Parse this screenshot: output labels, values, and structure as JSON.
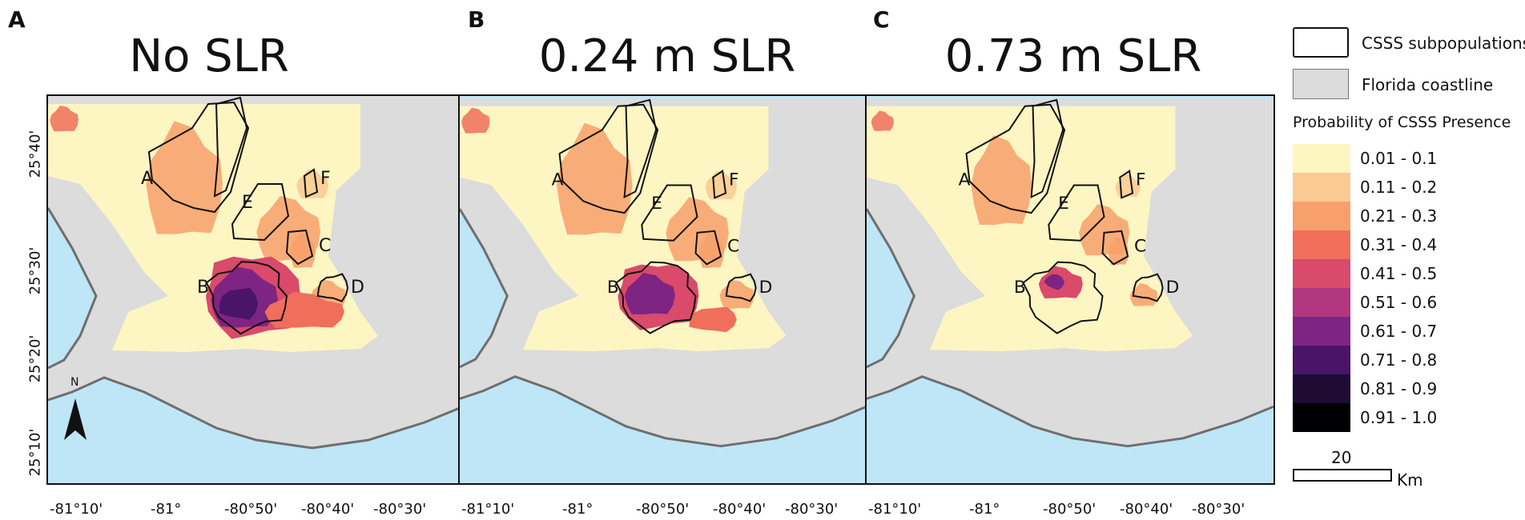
{
  "panels": [
    {
      "letter": "A",
      "title": "No SLR"
    },
    {
      "letter": "B",
      "title": "0.24 m SLR"
    },
    {
      "letter": "C",
      "title": "0.73 m SLR"
    }
  ],
  "y_ticks": [
    "25°40'",
    "25°30'",
    "25°20'",
    "25°10'"
  ],
  "x_ticks": [
    "-81°10'",
    "-81°",
    "-80°50'",
    "-80°40'",
    "-80°30'"
  ],
  "subpop_labels": [
    "A",
    "B",
    "C",
    "D",
    "E",
    "F"
  ],
  "north_label": "N",
  "legend": {
    "subpop_label": "CSSS subpopulations",
    "coast_label": "Florida coastline",
    "prob_title": "Probability of CSSS Presence",
    "classes": [
      {
        "label": "0.01 - 0.1",
        "color": "#fdf6c3"
      },
      {
        "label": "0.11 - 0.2",
        "color": "#fbc992"
      },
      {
        "label": "0.21 - 0.3",
        "color": "#f7a06b"
      },
      {
        "label": "0.31 - 0.4",
        "color": "#ef6f5b"
      },
      {
        "label": "0.41 - 0.5",
        "color": "#d94a6b"
      },
      {
        "label": "0.51 - 0.6",
        "color": "#b1367e"
      },
      {
        "label": "0.61 - 0.7",
        "color": "#7e2482"
      },
      {
        "label": "0.71 - 0.8",
        "color": "#4a1468"
      },
      {
        "label": "0.81 - 0.9",
        "color": "#1e0c35"
      },
      {
        "label": "0.91 - 1.0",
        "color": "#000004"
      }
    ],
    "scale_value": "20",
    "scale_unit": "Km"
  },
  "colors": {
    "water": "#bfe6f6",
    "land": "#dcdcdc",
    "coast_line": "#6e6e6e",
    "subpop_outline": "#111111"
  }
}
